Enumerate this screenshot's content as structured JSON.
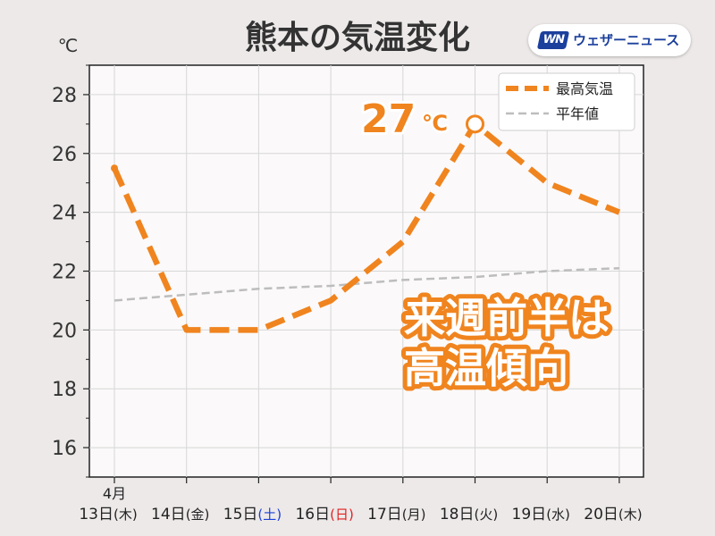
{
  "header": {
    "title": "熊本の気温変化",
    "unit": "℃"
  },
  "logo": {
    "mark": "WN",
    "name": "ウェザーニュース"
  },
  "chart_data": {
    "type": "line",
    "x": [
      "13日",
      "14日",
      "15日",
      "16日",
      "17日",
      "18日",
      "19日",
      "20日"
    ],
    "x_month_label": "4月",
    "x_weekdays": [
      "(木)",
      "(金)",
      "(土)",
      "(日)",
      "(月)",
      "(火)",
      "(水)",
      "(木)"
    ],
    "x_weekday_colors": [
      "#222222",
      "#222222",
      "#1a3fd6",
      "#e02020",
      "#222222",
      "#222222",
      "#222222",
      "#222222"
    ],
    "series": [
      {
        "name": "最高気温",
        "values": [
          25.5,
          20,
          20,
          21,
          23,
          27,
          25,
          24
        ],
        "color": "#f0841e",
        "style": "thick-dashed"
      },
      {
        "name": "平年値",
        "values": [
          21.0,
          21.2,
          21.4,
          21.5,
          21.7,
          21.8,
          22.0,
          22.1
        ],
        "color": "#bdbdbd",
        "style": "thin-dashed"
      }
    ],
    "ylim": [
      15,
      29
    ],
    "yticks": [
      16,
      18,
      20,
      22,
      24,
      26,
      28
    ],
    "grid": true,
    "legend": "top-right",
    "annotations": {
      "peak_value": "27",
      "peak_unit": "℃",
      "peak_index": 5,
      "message_lines": [
        "来週前半は",
        "高温傾向"
      ]
    },
    "colors": {
      "accent": "#f0841e",
      "background": "#ede9e9",
      "plot_background": "#fbf9f9",
      "grid": "#d7d7d7"
    }
  }
}
